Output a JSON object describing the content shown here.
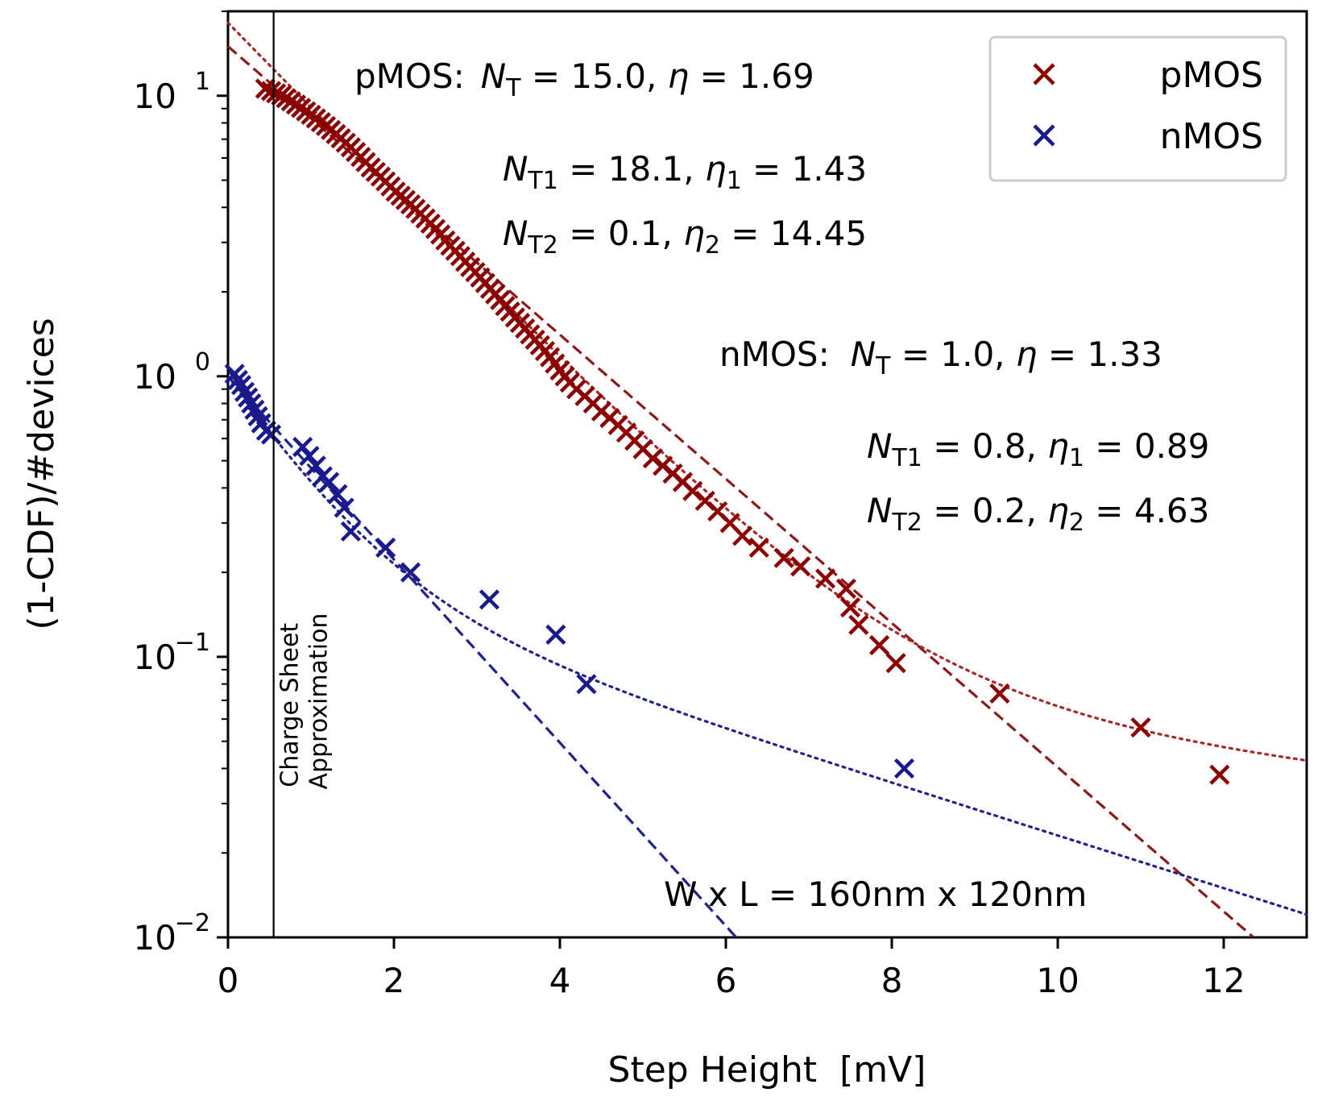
{
  "chart_data": {
    "type": "scatter",
    "xlabel": "Step Height  [mV]",
    "ylabel": "(1-CDF)/#devices",
    "xlim": [
      0,
      13
    ],
    "ylim": [
      0.01,
      20
    ],
    "yscale": "log",
    "grid": false,
    "legend_position": "top-right",
    "x_ticks": [
      {
        "value": 0,
        "label": "0"
      },
      {
        "value": 2,
        "label": "2"
      },
      {
        "value": 4,
        "label": "4"
      },
      {
        "value": 6,
        "label": "6"
      },
      {
        "value": 8,
        "label": "8"
      },
      {
        "value": 10,
        "label": "10"
      },
      {
        "value": 12,
        "label": "12"
      }
    ],
    "y_ticks": [
      {
        "value": 10,
        "base": "10",
        "exp": "1"
      },
      {
        "value": 1,
        "base": "10",
        "exp": "0"
      },
      {
        "value": 0.1,
        "base": "10",
        "exp": "−1"
      },
      {
        "value": 0.01,
        "base": "10",
        "exp": "−2"
      }
    ],
    "vertical_line": {
      "x": 0.55,
      "label_line1": "Charge Sheet",
      "label_line2": "Approximation"
    },
    "series": [
      {
        "name": "pMOS",
        "color": "#8b0000",
        "marker": "x",
        "points": [
          [
            0.45,
            10.6
          ],
          [
            0.52,
            10.4
          ],
          [
            0.58,
            10.2
          ],
          [
            0.64,
            10.0
          ],
          [
            0.7,
            9.8
          ],
          [
            0.76,
            9.55
          ],
          [
            0.82,
            9.3
          ],
          [
            0.88,
            9.05
          ],
          [
            0.94,
            8.8
          ],
          [
            1.0,
            8.55
          ],
          [
            1.06,
            8.3
          ],
          [
            1.12,
            8.05
          ],
          [
            1.18,
            7.8
          ],
          [
            1.24,
            7.55
          ],
          [
            1.3,
            7.3
          ],
          [
            1.36,
            7.05
          ],
          [
            1.42,
            6.8
          ],
          [
            1.48,
            6.55
          ],
          [
            1.54,
            6.3
          ],
          [
            1.6,
            6.05
          ],
          [
            1.66,
            5.8
          ],
          [
            1.72,
            5.55
          ],
          [
            1.78,
            5.35
          ],
          [
            1.84,
            5.15
          ],
          [
            1.9,
            4.95
          ],
          [
            1.96,
            4.75
          ],
          [
            2.02,
            4.55
          ],
          [
            2.08,
            4.4
          ],
          [
            2.14,
            4.25
          ],
          [
            2.2,
            4.1
          ],
          [
            2.26,
            3.95
          ],
          [
            2.32,
            3.8
          ],
          [
            2.38,
            3.65
          ],
          [
            2.44,
            3.5
          ],
          [
            2.5,
            3.35
          ],
          [
            2.56,
            3.2
          ],
          [
            2.62,
            3.05
          ],
          [
            2.68,
            2.92
          ],
          [
            2.74,
            2.8
          ],
          [
            2.8,
            2.68
          ],
          [
            2.86,
            2.56
          ],
          [
            2.92,
            2.45
          ],
          [
            2.98,
            2.35
          ],
          [
            3.04,
            2.25
          ],
          [
            3.1,
            2.15
          ],
          [
            3.16,
            2.05
          ],
          [
            3.22,
            1.96
          ],
          [
            3.28,
            1.87
          ],
          [
            3.34,
            1.78
          ],
          [
            3.4,
            1.7
          ],
          [
            3.46,
            1.62
          ],
          [
            3.52,
            1.55
          ],
          [
            3.58,
            1.48
          ],
          [
            3.64,
            1.41
          ],
          [
            3.7,
            1.35
          ],
          [
            3.76,
            1.29
          ],
          [
            3.82,
            1.23
          ],
          [
            3.88,
            1.17
          ],
          [
            3.94,
            1.11
          ],
          [
            4.0,
            1.05
          ],
          [
            4.06,
            1.0
          ],
          [
            4.12,
            0.95
          ],
          [
            4.2,
            0.9
          ],
          [
            4.3,
            0.85
          ],
          [
            4.4,
            0.8
          ],
          [
            4.5,
            0.75
          ],
          [
            4.6,
            0.71
          ],
          [
            4.7,
            0.67
          ],
          [
            4.8,
            0.63
          ],
          [
            4.9,
            0.59
          ],
          [
            5.0,
            0.55
          ],
          [
            5.12,
            0.51
          ],
          [
            5.24,
            0.48
          ],
          [
            5.36,
            0.45
          ],
          [
            5.48,
            0.42
          ],
          [
            5.6,
            0.39
          ],
          [
            5.75,
            0.36
          ],
          [
            5.9,
            0.33
          ],
          [
            6.05,
            0.3
          ],
          [
            6.2,
            0.27
          ],
          [
            6.4,
            0.245
          ],
          [
            6.7,
            0.225
          ],
          [
            6.9,
            0.21
          ],
          [
            7.2,
            0.19
          ],
          [
            7.45,
            0.175
          ],
          [
            7.5,
            0.15
          ],
          [
            7.6,
            0.13
          ],
          [
            7.85,
            0.11
          ],
          [
            8.05,
            0.095
          ],
          [
            9.3,
            0.074
          ],
          [
            11.0,
            0.056
          ],
          [
            11.95,
            0.038
          ]
        ]
      },
      {
        "name": "nMOS",
        "color": "#1a1a8c",
        "marker": "x",
        "points": [
          [
            0.08,
            1.02
          ],
          [
            0.12,
            0.97
          ],
          [
            0.16,
            0.93
          ],
          [
            0.2,
            0.88
          ],
          [
            0.24,
            0.84
          ],
          [
            0.28,
            0.8
          ],
          [
            0.32,
            0.76
          ],
          [
            0.36,
            0.72
          ],
          [
            0.4,
            0.68
          ],
          [
            0.46,
            0.64
          ],
          [
            0.52,
            0.62
          ],
          [
            0.9,
            0.56
          ],
          [
            0.98,
            0.52
          ],
          [
            1.06,
            0.48
          ],
          [
            1.14,
            0.44
          ],
          [
            1.22,
            0.42
          ],
          [
            1.32,
            0.38
          ],
          [
            1.4,
            0.34
          ],
          [
            1.48,
            0.28
          ],
          [
            1.9,
            0.245
          ],
          [
            2.2,
            0.2
          ],
          [
            3.15,
            0.16
          ],
          [
            3.95,
            0.12
          ],
          [
            4.32,
            0.08
          ],
          [
            8.15,
            0.04
          ]
        ]
      }
    ],
    "fit_lines": [
      {
        "series": "pMOS",
        "style": "dashed",
        "color": "#8b1a1a",
        "NT": 15.0,
        "eta": 1.69
      },
      {
        "series": "pMOS",
        "style": "dotted",
        "color": "#a52a2a",
        "NT1": 18.1,
        "eta1": 1.43,
        "NT2": 0.1,
        "eta2": 14.45
      },
      {
        "series": "nMOS",
        "style": "dashed",
        "color": "#22228b",
        "NT": 1.0,
        "eta": 1.33
      },
      {
        "series": "nMOS",
        "style": "dotted",
        "color": "#22228b",
        "NT1": 0.8,
        "eta1": 0.89,
        "NT2": 0.2,
        "eta2": 4.63
      }
    ],
    "annotations": {
      "pmos_single": {
        "prefix": "pMOS:",
        "text": " = 15.0, ",
        "eta_text": " = 1.69"
      },
      "pmos_t1": {
        "sub": "T1",
        "text": " = 18.1, ",
        "eta_sub": "1",
        "eta_text": " = 1.43"
      },
      "pmos_t2": {
        "sub": "T2",
        "text": " = 0.1, ",
        "eta_sub": "2",
        "eta_text": " = 14.45"
      },
      "nmos_single": {
        "prefix": "nMOS:",
        "text": " = 1.0, ",
        "eta_text": " = 1.33"
      },
      "nmos_t1": {
        "sub": "T1",
        "text": " = 0.8, ",
        "eta_sub": "1",
        "eta_text": " = 0.89"
      },
      "nmos_t2": {
        "sub": "T2",
        "text": " = 0.2, ",
        "eta_sub": "2",
        "eta_text": " = 4.63"
      },
      "device_size": "W x L = 160nm x 120nm",
      "N_symbol": "N",
      "T_subscript": "T",
      "eta_symbol": "η"
    }
  }
}
